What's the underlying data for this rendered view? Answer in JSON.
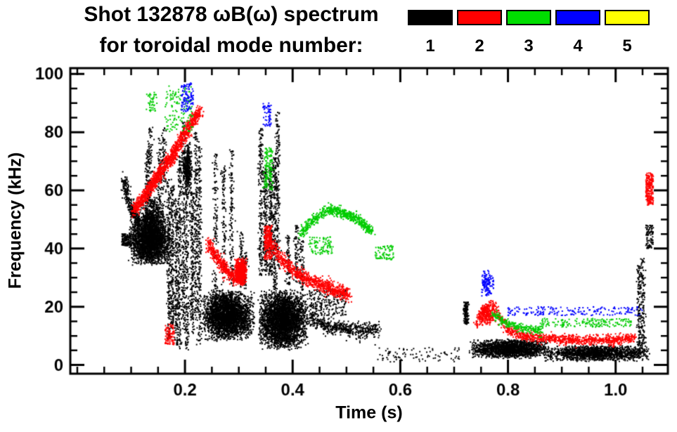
{
  "chart_data": {
    "type": "scatter",
    "title_line1": "Shot 132878 ωB(ω) spectrum",
    "title_line2": "for toroidal mode number:",
    "xlabel": "Time (s)",
    "ylabel": "Frequency (kHz)",
    "xlim": [
      -0.013,
      1.097
    ],
    "ylim": [
      -3,
      102
    ],
    "xticks": [
      {
        "v": 0.2,
        "label": "0.2"
      },
      {
        "v": 0.4,
        "label": "0.4"
      },
      {
        "v": 0.6,
        "label": "0.6"
      },
      {
        "v": 0.8,
        "label": "0.8"
      },
      {
        "v": 1.0,
        "label": "1.0"
      }
    ],
    "yticks": [
      {
        "v": 0,
        "label": "0"
      },
      {
        "v": 20,
        "label": "20"
      },
      {
        "v": 40,
        "label": "40"
      },
      {
        "v": 60,
        "label": "60"
      },
      {
        "v": 80,
        "label": "80"
      },
      {
        "v": 100,
        "label": "100"
      }
    ],
    "x_minor_step": 0.05,
    "y_minor_step": 5,
    "seed": 7,
    "legend": [
      {
        "label": "1",
        "color": "#000000"
      },
      {
        "label": "2",
        "color": "#ff0000"
      },
      {
        "label": "3",
        "color": "#00dd00"
      },
      {
        "label": "4",
        "color": "#0000ff"
      },
      {
        "label": "5",
        "color": "#ffff00"
      }
    ],
    "series": [
      {
        "name": "mode-1",
        "color": "#000000",
        "features": [
          {
            "kind": "curve",
            "pts": [
              [
                0.085,
                64
              ],
              [
                0.1,
                54
              ],
              [
                0.115,
                49
              ]
            ],
            "jitter": 2.5,
            "n": 320
          },
          {
            "kind": "cloud",
            "t": [
              0.083,
              0.1
            ],
            "f": [
              41,
              45
            ],
            "n": 140
          },
          {
            "kind": "cloud",
            "t": [
              0.095,
              0.175
            ],
            "f": [
              34,
              52
            ],
            "n": 2600,
            "soft": true
          },
          {
            "kind": "cloud",
            "t": [
              0.115,
              0.165
            ],
            "f": [
              45,
              58
            ],
            "n": 450,
            "soft": true
          },
          {
            "kind": "vstreaks",
            "t": [
              0.12,
              0.168
            ],
            "f": [
              55,
              88
            ],
            "count": 4,
            "n": 320
          },
          {
            "kind": "vstreaks",
            "t": [
              0.168,
              0.228
            ],
            "f": [
              5,
              95
            ],
            "count": 9,
            "n": 1900
          },
          {
            "kind": "cloud",
            "t": [
              0.196,
              0.214
            ],
            "f": [
              58,
              77
            ],
            "n": 380,
            "soft": true
          },
          {
            "kind": "cloud",
            "t": [
              0.23,
              0.33
            ],
            "f": [
              8,
              26
            ],
            "n": 2900,
            "soft": true
          },
          {
            "kind": "vstreaks",
            "t": [
              0.252,
              0.292
            ],
            "f": [
              12,
              90
            ],
            "count": 3,
            "n": 450
          },
          {
            "kind": "vstreaks",
            "t": [
              0.3,
              0.318
            ],
            "f": [
              25,
              46
            ],
            "count": 2,
            "n": 110
          },
          {
            "kind": "cloud",
            "t": [
              0.335,
              0.43
            ],
            "f": [
              5,
              26
            ],
            "n": 3300,
            "soft": true
          },
          {
            "kind": "vstreaks",
            "t": [
              0.34,
              0.378
            ],
            "f": [
              25,
              97
            ],
            "count": 5,
            "n": 950
          },
          {
            "kind": "vstreaks",
            "t": [
              0.385,
              0.42
            ],
            "f": [
              25,
              50
            ],
            "count": 3,
            "n": 220
          },
          {
            "kind": "curve",
            "pts": [
              [
                0.43,
                16
              ],
              [
                0.47,
                13
              ],
              [
                0.52,
                12
              ],
              [
                0.56,
                12
              ]
            ],
            "jitter": 2.4,
            "n": 520
          },
          {
            "kind": "cloud",
            "t": [
              0.43,
              0.5
            ],
            "f": [
              17,
              26
            ],
            "n": 230
          },
          {
            "kind": "cloud",
            "t": [
              0.555,
              0.71
            ],
            "f": [
              1,
              6
            ],
            "n": 90
          },
          {
            "kind": "vstreaks",
            "t": [
              0.714,
              0.728
            ],
            "f": [
              13,
              26
            ],
            "count": 1,
            "n": 140
          },
          {
            "kind": "cloud",
            "t": [
              0.725,
              0.88
            ],
            "f": [
              2,
              9
            ],
            "n": 1700,
            "soft": true
          },
          {
            "kind": "cloud",
            "t": [
              0.86,
              1.07
            ],
            "f": [
              1,
              7
            ],
            "n": 1500,
            "soft": true
          },
          {
            "kind": "vstreaks",
            "t": [
              1.04,
              1.058
            ],
            "f": [
              3,
              50
            ],
            "count": 2,
            "n": 280
          },
          {
            "kind": "cloud",
            "t": [
              1.056,
              1.07
            ],
            "f": [
              40,
              48
            ],
            "n": 90
          }
        ]
      },
      {
        "name": "mode-2",
        "color": "#ff0000",
        "features": [
          {
            "kind": "curve",
            "pts": [
              [
                0.105,
                53
              ],
              [
                0.14,
                62
              ],
              [
                0.18,
                73
              ],
              [
                0.215,
                84
              ],
              [
                0.229,
                87
              ]
            ],
            "jitter": 2.2,
            "n": 1350
          },
          {
            "kind": "cloud",
            "t": [
              0.163,
              0.18
            ],
            "f": [
              7,
              14
            ],
            "n": 90
          },
          {
            "kind": "curve",
            "pts": [
              [
                0.242,
                42
              ],
              [
                0.27,
                34
              ],
              [
                0.296,
                29
              ]
            ],
            "jitter": 2.2,
            "n": 420
          },
          {
            "kind": "cloud",
            "t": [
              0.292,
              0.316
            ],
            "f": [
              27,
              37
            ],
            "n": 650,
            "soft": true
          },
          {
            "kind": "curve",
            "pts": [
              [
                0.35,
                44
              ],
              [
                0.38,
                36
              ],
              [
                0.42,
                30
              ],
              [
                0.46,
                27
              ],
              [
                0.505,
                24
              ]
            ],
            "jitter": 2.2,
            "n": 900
          },
          {
            "kind": "cloud",
            "t": [
              0.347,
              0.362
            ],
            "f": [
              36,
              48
            ],
            "n": 180
          },
          {
            "kind": "curve",
            "pts": [
              [
                0.74,
                14
              ],
              [
                0.756,
                19
              ],
              [
                0.77,
                21
              ],
              [
                0.786,
                16
              ],
              [
                0.8,
                12
              ],
              [
                0.83,
                10
              ],
              [
                0.87,
                9
              ],
              [
                0.93,
                8.5
              ],
              [
                1.0,
                8.5
              ],
              [
                1.035,
                9.5
              ]
            ],
            "jitter": 1.6,
            "n": 1050
          },
          {
            "kind": "cloud",
            "t": [
              0.744,
              0.778
            ],
            "f": [
              13,
              21
            ],
            "n": 220,
            "soft": true
          },
          {
            "kind": "cloud",
            "t": [
              1.056,
              1.07
            ],
            "f": [
              55,
              66
            ],
            "n": 230
          }
        ]
      },
      {
        "name": "mode-3",
        "color": "#00cc00",
        "features": [
          {
            "kind": "curve",
            "pts": [
              [
                0.415,
                45
              ],
              [
                0.44,
                50
              ],
              [
                0.465,
                53.5
              ],
              [
                0.49,
                52.5
              ],
              [
                0.52,
                50
              ],
              [
                0.548,
                46
              ]
            ],
            "jitter": 1.5,
            "n": 620
          },
          {
            "kind": "cloud",
            "t": [
              0.43,
              0.475
            ],
            "f": [
              38,
              44
            ],
            "n": 90
          },
          {
            "kind": "cloud",
            "t": [
              0.553,
              0.588
            ],
            "f": [
              36,
              41
            ],
            "n": 70
          },
          {
            "kind": "cloud",
            "t": [
              0.128,
              0.148
            ],
            "f": [
              87,
              94
            ],
            "n": 45
          },
          {
            "kind": "cloud",
            "t": [
              0.163,
              0.215
            ],
            "f": [
              80,
              96
            ],
            "n": 130
          },
          {
            "kind": "vstreaks",
            "t": [
              0.348,
              0.364
            ],
            "f": [
              60,
              80
            ],
            "count": 2,
            "n": 150
          },
          {
            "kind": "curve",
            "pts": [
              [
                0.772,
                17.5
              ],
              [
                0.8,
                14
              ],
              [
                0.83,
                12.5
              ],
              [
                0.862,
                12
              ]
            ],
            "jitter": 1.4,
            "n": 240
          },
          {
            "kind": "cloud",
            "t": [
              0.86,
              1.03
            ],
            "f": [
              13,
              16
            ],
            "n": 170
          }
        ]
      },
      {
        "name": "mode-4",
        "color": "#0000ff",
        "features": [
          {
            "kind": "cloud",
            "t": [
              0.193,
              0.216
            ],
            "f": [
              87,
              97
            ],
            "n": 110
          },
          {
            "kind": "cloud",
            "t": [
              0.345,
              0.36
            ],
            "f": [
              82,
              90
            ],
            "n": 55
          },
          {
            "kind": "cloud",
            "t": [
              0.748,
              0.776
            ],
            "f": [
              23,
              33
            ],
            "n": 130,
            "soft": true
          },
          {
            "kind": "cloud",
            "t": [
              0.8,
              1.05
            ],
            "f": [
              17,
              20
            ],
            "n": 190
          }
        ]
      },
      {
        "name": "mode-5",
        "color": "#ffff00",
        "features": []
      }
    ]
  }
}
